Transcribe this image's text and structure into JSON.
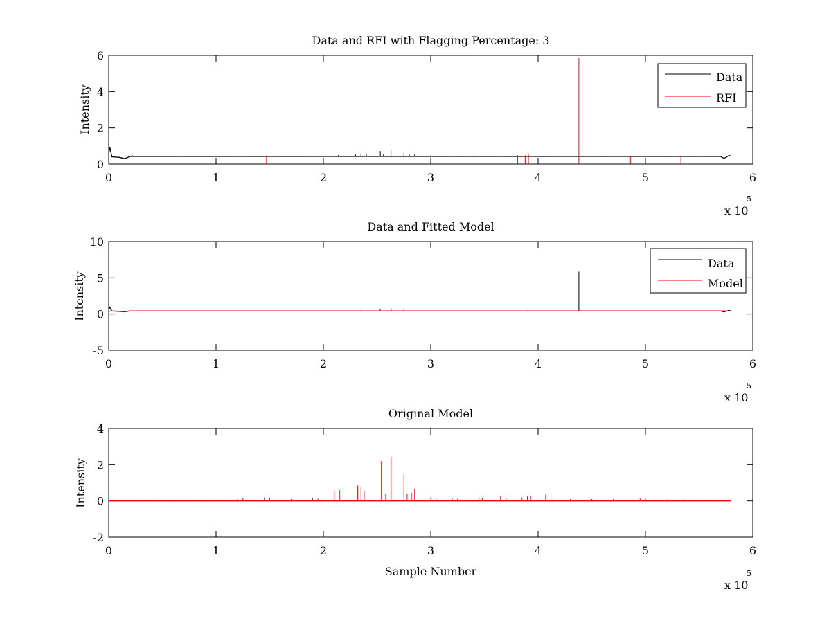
{
  "chart_data": [
    {
      "type": "line",
      "title": "Data and RFI with Flagging Percentage: 3",
      "xlabel": "",
      "ylabel": "Intensity",
      "xlim": [
        0,
        6
      ],
      "ylim": [
        0,
        6
      ],
      "x_ticks": [
        0,
        1,
        2,
        3,
        4,
        5,
        6
      ],
      "y_ticks": [
        0,
        2,
        4,
        6
      ],
      "x_multiplier": {
        "base": "x 10",
        "exponent": "5"
      },
      "legend": {
        "placement": "top-right",
        "entries": [
          "Data",
          "RFI"
        ]
      },
      "grid": false,
      "series": [
        {
          "name": "Data",
          "color": "#000000",
          "baseline": 0.42,
          "points": [
            [
              0,
              0.5
            ],
            [
              0.01,
              0.95
            ],
            [
              0.03,
              0.4
            ],
            [
              0.1,
              0.37
            ],
            [
              0.15,
              0.3
            ],
            [
              0.2,
              0.42
            ],
            [
              0.3,
              0.42
            ],
            [
              5.7,
              0.42
            ],
            [
              5.73,
              0.32
            ],
            [
              5.75,
              0.37
            ],
            [
              5.78,
              0.48
            ],
            [
              5.8,
              0.42
            ]
          ],
          "spikes": [
            [
              0.22,
              0.49
            ],
            [
              0.26,
              0.45
            ],
            [
              0.4,
              0.44
            ],
            [
              0.65,
              0.45
            ],
            [
              1.0,
              0.45
            ],
            [
              1.2,
              0.46
            ],
            [
              1.3,
              0.45
            ],
            [
              1.55,
              0.45
            ],
            [
              1.8,
              0.45
            ],
            [
              1.9,
              0.46
            ],
            [
              1.96,
              0.47
            ],
            [
              2.1,
              0.48
            ],
            [
              2.14,
              0.5
            ],
            [
              2.3,
              0.52
            ],
            [
              2.35,
              0.55
            ],
            [
              2.4,
              0.56
            ],
            [
              2.53,
              0.72
            ],
            [
              2.56,
              0.55
            ],
            [
              2.63,
              0.82
            ],
            [
              2.75,
              0.6
            ],
            [
              2.8,
              0.56
            ],
            [
              2.85,
              0.53
            ],
            [
              3.0,
              0.48
            ],
            [
              3.2,
              0.46
            ],
            [
              3.4,
              0.47
            ],
            [
              3.6,
              0.46
            ],
            [
              3.7,
              0.46
            ],
            [
              4.0,
              0.46
            ],
            [
              4.2,
              0.45
            ],
            [
              4.5,
              0.45
            ],
            [
              4.7,
              0.45
            ],
            [
              5.0,
              0.45
            ],
            [
              5.2,
              0.45
            ],
            [
              5.5,
              0.45
            ]
          ]
        },
        {
          "name": "RFI",
          "color": "#ff0000",
          "spikes": [
            [
              1.47,
              0.47
            ],
            [
              3.81,
              0.49
            ],
            [
              3.88,
              0.48
            ],
            [
              3.91,
              0.55
            ],
            [
              4.38,
              5.85
            ],
            [
              4.86,
              0.46
            ],
            [
              5.33,
              0.46
            ]
          ]
        }
      ]
    },
    {
      "type": "line",
      "title": "Data and Fitted Model",
      "xlabel": "",
      "ylabel": "Intensity",
      "xlim": [
        0,
        6
      ],
      "ylim": [
        -5,
        10
      ],
      "x_ticks": [
        0,
        1,
        2,
        3,
        4,
        5,
        6
      ],
      "y_ticks": [
        -5,
        0,
        5,
        10
      ],
      "x_multiplier": {
        "base": "x 10",
        "exponent": "5"
      },
      "legend": {
        "placement": "top-right",
        "entries": [
          "Data",
          "Model"
        ]
      },
      "grid": false,
      "series": [
        {
          "name": "Data",
          "color": "#000000",
          "baseline": 0.42,
          "points": [
            [
              0,
              0.5
            ],
            [
              0.01,
              0.95
            ],
            [
              0.03,
              0.42
            ],
            [
              0.15,
              0.3
            ],
            [
              0.2,
              0.42
            ],
            [
              5.7,
              0.42
            ],
            [
              5.73,
              0.3
            ],
            [
              5.78,
              0.5
            ],
            [
              5.8,
              0.42
            ]
          ],
          "spikes": [
            [
              2.14,
              0.5
            ],
            [
              2.35,
              0.55
            ],
            [
              2.53,
              0.72
            ],
            [
              2.63,
              0.82
            ],
            [
              2.75,
              0.6
            ],
            [
              3.43,
              0.5
            ],
            [
              3.9,
              0.5
            ],
            [
              4.38,
              5.85
            ],
            [
              4.88,
              0.46
            ],
            [
              5.35,
              0.46
            ]
          ]
        },
        {
          "name": "Model",
          "color": "#ff0000",
          "baseline": 0.42,
          "points": [
            [
              0,
              0.35
            ],
            [
              0.02,
              0.42
            ],
            [
              0.15,
              0.35
            ],
            [
              0.2,
              0.42
            ],
            [
              5.8,
              0.42
            ]
          ],
          "spikes": [
            [
              2.53,
              0.6
            ],
            [
              2.63,
              0.7
            ],
            [
              2.75,
              0.55
            ]
          ]
        }
      ]
    },
    {
      "type": "line",
      "title": "Original Model",
      "xlabel": "Sample Number",
      "ylabel": "Intensity",
      "xlim": [
        0,
        6
      ],
      "ylim": [
        -2,
        4
      ],
      "x_ticks": [
        0,
        1,
        2,
        3,
        4,
        5,
        6
      ],
      "y_ticks": [
        -2,
        0,
        2,
        4
      ],
      "x_multiplier": {
        "base": "x 10",
        "exponent": "5"
      },
      "grid": false,
      "series": [
        {
          "color": "#ff0000",
          "baseline": 0,
          "points": [
            [
              0,
              0
            ],
            [
              5.8,
              0
            ]
          ],
          "spikes": [
            [
              0.3,
              0.05
            ],
            [
              0.35,
              0.04
            ],
            [
              0.55,
              0.05
            ],
            [
              0.6,
              0.04
            ],
            [
              0.8,
              0.06
            ],
            [
              0.85,
              0.05
            ],
            [
              1.0,
              0.05
            ],
            [
              1.2,
              0.1
            ],
            [
              1.25,
              0.15
            ],
            [
              1.45,
              0.2
            ],
            [
              1.5,
              0.18
            ],
            [
              1.7,
              0.1
            ],
            [
              1.9,
              0.15
            ],
            [
              1.95,
              0.12
            ],
            [
              2.1,
              0.55
            ],
            [
              2.15,
              0.6
            ],
            [
              2.32,
              0.85
            ],
            [
              2.35,
              0.8
            ],
            [
              2.38,
              0.55
            ],
            [
              2.54,
              2.2
            ],
            [
              2.58,
              0.4
            ],
            [
              2.63,
              2.45
            ],
            [
              2.75,
              1.45
            ],
            [
              2.78,
              0.4
            ],
            [
              2.82,
              0.45
            ],
            [
              2.85,
              0.65
            ],
            [
              3.0,
              0.2
            ],
            [
              3.05,
              0.15
            ],
            [
              3.2,
              0.15
            ],
            [
              3.25,
              0.12
            ],
            [
              3.45,
              0.2
            ],
            [
              3.48,
              0.18
            ],
            [
              3.65,
              0.25
            ],
            [
              3.7,
              0.2
            ],
            [
              3.85,
              0.2
            ],
            [
              3.9,
              0.25
            ],
            [
              3.93,
              0.3
            ],
            [
              4.07,
              0.35
            ],
            [
              4.12,
              0.3
            ],
            [
              4.3,
              0.1
            ],
            [
              4.5,
              0.1
            ],
            [
              4.7,
              0.1
            ],
            [
              4.95,
              0.15
            ],
            [
              5.0,
              0.12
            ],
            [
              5.2,
              0.08
            ],
            [
              5.35,
              0.08
            ],
            [
              5.5,
              0.08
            ],
            [
              5.6,
              0.06
            ]
          ]
        }
      ]
    }
  ]
}
